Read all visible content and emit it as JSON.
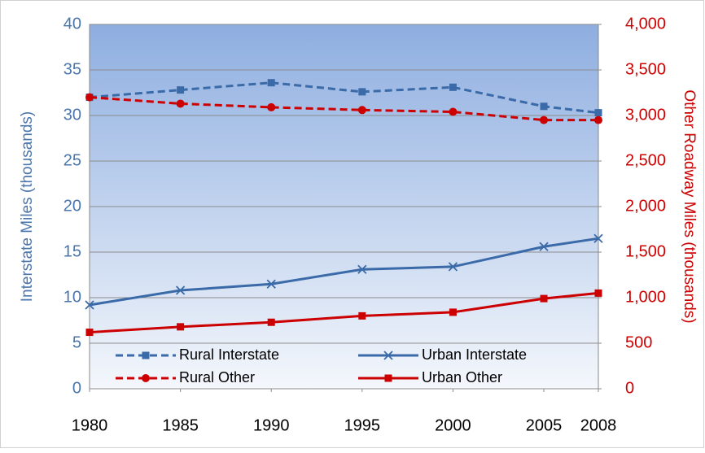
{
  "chart_data": {
    "type": "line",
    "x": [
      1980,
      1985,
      1990,
      1995,
      2000,
      2005,
      2008
    ],
    "xlim": [
      1980,
      2008
    ],
    "xticks": [
      1980,
      1985,
      1990,
      1995,
      2000,
      2005,
      2008
    ],
    "ylabel": "Interstate Miles (thousands)",
    "ylim": [
      0,
      40
    ],
    "yticks": [
      0,
      5,
      10,
      15,
      20,
      25,
      30,
      35,
      40
    ],
    "y2label": "Other Roadway Miles (thousands)",
    "y2lim": [
      0,
      4000
    ],
    "y2ticks": [
      0,
      500,
      {
        "value": 1000,
        "label": "1,000"
      },
      {
        "value": 1500,
        "label": "1,500"
      },
      {
        "value": 2000,
        "label": "2,000"
      },
      {
        "value": 2500,
        "label": "2,500"
      },
      {
        "value": 3000,
        "label": "3,000"
      },
      {
        "value": 3500,
        "label": "3,500"
      },
      {
        "value": 4000,
        "label": "4,000"
      }
    ],
    "grid": true,
    "legend": "bottom",
    "series": [
      {
        "name": "Rural Interstate",
        "color": "#3a6aa8",
        "dash": true,
        "marker": "square",
        "axis": "y",
        "values": [
          32.0,
          32.8,
          33.6,
          32.6,
          33.1,
          31.0,
          30.3
        ]
      },
      {
        "name": "Urban Interstate",
        "color": "#3a6aa8",
        "dash": false,
        "marker": "x",
        "axis": "y",
        "values": [
          9.2,
          10.8,
          11.5,
          13.1,
          13.4,
          15.6,
          16.5
        ]
      },
      {
        "name": "Rural Other",
        "color": "#cc0000",
        "dash": true,
        "marker": "circle",
        "axis": "y2",
        "values": [
          3200,
          3130,
          3090,
          3060,
          3040,
          2950,
          2950
        ]
      },
      {
        "name": "Urban Other",
        "color": "#cc0000",
        "dash": false,
        "marker": "square",
        "axis": "y2",
        "values": [
          620,
          680,
          730,
          800,
          840,
          990,
          1050
        ]
      }
    ]
  }
}
